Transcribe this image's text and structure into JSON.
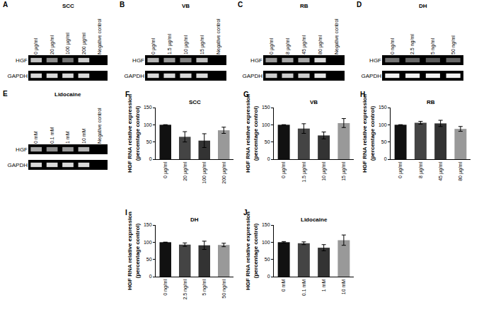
{
  "gels": [
    {
      "panel": "A",
      "title": "SCC",
      "lanes": [
        "0 μg/ml",
        "20 μg/ml",
        "100 μg/ml",
        "200 μg/ml",
        "Negative control"
      ],
      "rows": [
        {
          "label": "HGF",
          "intensity": [
            0.75,
            0.55,
            0.45,
            0.8,
            0
          ]
        },
        {
          "label": "GAPDH",
          "intensity": [
            0.85,
            0.85,
            0.85,
            0.85,
            0
          ]
        }
      ]
    },
    {
      "panel": "B",
      "title": "VB",
      "lanes": [
        "0 μg/ml",
        "1.5 μg/ml",
        "10 μg/ml",
        "15 μg/ml",
        "Negative control"
      ],
      "rows": [
        {
          "label": "HGF",
          "intensity": [
            0.7,
            0.6,
            0.5,
            0.75,
            0
          ]
        },
        {
          "label": "GAPDH",
          "intensity": [
            0.85,
            0.85,
            0.85,
            0.85,
            0
          ]
        }
      ]
    },
    {
      "panel": "C",
      "title": "RB",
      "lanes": [
        "0 μg/ml",
        "8 μg/ml",
        "45 μg/ml",
        "80 μg/ml",
        "Negative control"
      ],
      "rows": [
        {
          "label": "HGF",
          "intensity": [
            0.6,
            0.65,
            0.65,
            0.85,
            0
          ]
        },
        {
          "label": "GAPDH",
          "intensity": [
            0.8,
            0.8,
            0.8,
            0.9,
            0
          ]
        }
      ]
    },
    {
      "panel": "D",
      "title": "DH",
      "lanes": [
        "0 ng/ml",
        "2.5 ng/ml",
        "5 ng/ml",
        "50 ng/ml"
      ],
      "rows": [
        {
          "label": "HGF",
          "intensity": [
            0.45,
            0.4,
            0.35,
            0.4
          ]
        },
        {
          "label": "GAPDH",
          "intensity": [
            0.95,
            0.95,
            0.95,
            0.95
          ]
        }
      ]
    },
    {
      "panel": "E",
      "title": "Lidocaine",
      "lanes": [
        "0 mM",
        "0.1 mM",
        "1 mM",
        "10 mM",
        "Negative control"
      ],
      "rows": [
        {
          "label": "HGF",
          "intensity": [
            0.65,
            0.55,
            0.6,
            0.7,
            0
          ]
        },
        {
          "label": "GAPDH",
          "intensity": [
            0.85,
            0.85,
            0.85,
            0.85,
            0
          ]
        }
      ]
    }
  ],
  "chart_data": [
    {
      "type": "bar",
      "panel": "F",
      "title": "SCC",
      "y_label": [
        "HGF RNA relative expression",
        "(percentage control)"
      ],
      "categories": [
        "0 μg/ml",
        "20 μg/ml",
        "100 μg/ml",
        "200 μg/ml"
      ],
      "values": [
        100,
        65,
        54,
        84
      ],
      "errors": [
        0,
        15,
        20,
        9
      ],
      "colors": [
        "#111111",
        "#444444",
        "#333333",
        "#999999"
      ],
      "ylim": [
        0,
        150
      ],
      "yticks": [
        0,
        50,
        100,
        150
      ],
      "grid": false
    },
    {
      "type": "bar",
      "panel": "G",
      "title": "VB",
      "y_label": [
        "HGF RNA relative expression",
        "(percentage control)"
      ],
      "categories": [
        "0 μg/ml",
        "1.5 μg/ml",
        "10 μg/ml",
        "15 μg/ml"
      ],
      "values": [
        100,
        89,
        69,
        105
      ],
      "errors": [
        0,
        14,
        10,
        13
      ],
      "colors": [
        "#111111",
        "#444444",
        "#333333",
        "#999999"
      ],
      "ylim": [
        0,
        150
      ],
      "yticks": [
        0,
        50,
        100,
        150
      ],
      "grid": false
    },
    {
      "type": "bar",
      "panel": "H",
      "title": "RB",
      "y_label": [
        "HGF RNA relative expression",
        "(percentage control)"
      ],
      "categories": [
        "0 μg/ml",
        "8 μg/ml",
        "45 μg/ml",
        "80 μg/ml"
      ],
      "values": [
        100,
        106,
        104,
        88
      ],
      "errors": [
        0,
        4,
        9,
        7
      ],
      "colors": [
        "#111111",
        "#444444",
        "#333333",
        "#999999"
      ],
      "ylim": [
        0,
        150
      ],
      "yticks": [
        0,
        50,
        100,
        150
      ],
      "grid": false
    },
    {
      "type": "bar",
      "panel": "I",
      "title": "DH",
      "y_label": [
        "HGF RNA relative expression",
        "(percentage control)"
      ],
      "categories": [
        "0 ng/ml",
        "2.5 ng/ml",
        "5 ng/ml",
        "50 ng/ml"
      ],
      "values": [
        100,
        93,
        91,
        92
      ],
      "errors": [
        0,
        5,
        12,
        5
      ],
      "colors": [
        "#111111",
        "#444444",
        "#333333",
        "#999999"
      ],
      "ylim": [
        0,
        150
      ],
      "yticks": [
        0,
        50,
        100,
        150
      ],
      "grid": false
    },
    {
      "type": "bar",
      "panel": "J",
      "title": "Lidocaine",
      "y_label": [
        "HGF RNA relative expression",
        "(percentage control)"
      ],
      "categories": [
        "0 mM",
        "0.1 mM",
        "1 mM",
        "10 mM"
      ],
      "values": [
        100,
        97,
        84,
        106
      ],
      "errors": [
        2,
        4,
        9,
        15
      ],
      "colors": [
        "#111111",
        "#444444",
        "#333333",
        "#999999"
      ],
      "ylim": [
        0,
        150
      ],
      "yticks": [
        0,
        50,
        100,
        150
      ],
      "grid": false
    }
  ]
}
